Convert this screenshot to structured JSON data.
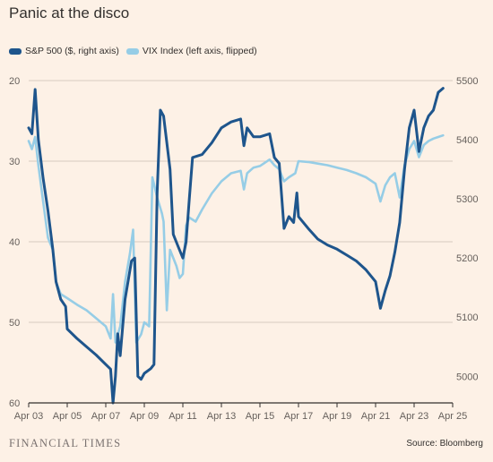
{
  "chart_data": {
    "type": "line",
    "title": "Panic at the disco",
    "x_ticks": [
      "Apr 03",
      "Apr 05",
      "Apr 07",
      "Apr 09",
      "Apr 11",
      "Apr 13",
      "Apr 15",
      "Apr 17",
      "Apr 19",
      "Apr 21",
      "Apr 23",
      "Apr 25"
    ],
    "y_left": {
      "ticks": [
        20,
        30,
        40,
        50,
        60
      ],
      "range": [
        20,
        60
      ],
      "inverted": true
    },
    "y_right": {
      "ticks": [
        5500,
        5400,
        5300,
        5200,
        5100,
        5000
      ],
      "range": [
        4955,
        5500
      ]
    },
    "series": [
      {
        "name": "S&P 500 ($, right axis)",
        "axis": "right",
        "color": "#1e558c",
        "points": [
          [
            "Apr 03",
            5420
          ],
          [
            "Apr 03 04h",
            5410
          ],
          [
            "Apr 03 08h",
            5485
          ],
          [
            "Apr 03 12h",
            5400
          ],
          [
            "Apr 03 18h",
            5335
          ],
          [
            "Apr 04",
            5280
          ],
          [
            "Apr 04 06h",
            5215
          ],
          [
            "Apr 04 10h",
            5160
          ],
          [
            "Apr 04 16h",
            5130
          ],
          [
            "Apr 04 22h",
            5118
          ],
          [
            "Apr 05",
            5080
          ],
          [
            "Apr 05 12h",
            5064
          ],
          [
            "Apr 06",
            5050
          ],
          [
            "Apr 06 12h",
            5036
          ],
          [
            "Apr 07",
            5020
          ],
          [
            "Apr 07 06h",
            5012
          ],
          [
            "Apr 07 09h",
            4955
          ],
          [
            "Apr 07 12h",
            5000
          ],
          [
            "Apr 07 15h",
            5072
          ],
          [
            "Apr 07 18h",
            5035
          ],
          [
            "Apr 08",
            5130
          ],
          [
            "Apr 08 08h",
            5195
          ],
          [
            "Apr 08 12h",
            5200
          ],
          [
            "Apr 08 16h",
            5000
          ],
          [
            "Apr 08 20h",
            4995
          ],
          [
            "Apr 09",
            5005
          ],
          [
            "Apr 09 08h",
            5013
          ],
          [
            "Apr 09 12h",
            5020
          ],
          [
            "Apr 09 16h",
            5310
          ],
          [
            "Apr 09 20h",
            5450
          ],
          [
            "Apr 10",
            5440
          ],
          [
            "Apr 10 08h",
            5350
          ],
          [
            "Apr 10 12h",
            5240
          ],
          [
            "Apr 10 18h",
            5220
          ],
          [
            "Apr 11",
            5200
          ],
          [
            "Apr 11 04h",
            5227
          ],
          [
            "Apr 11 08h",
            5300
          ],
          [
            "Apr 11 12h",
            5370
          ],
          [
            "Apr 12",
            5375
          ],
          [
            "Apr 12 12h",
            5395
          ],
          [
            "Apr 13",
            5420
          ],
          [
            "Apr 13 12h",
            5430
          ],
          [
            "Apr 14",
            5435
          ],
          [
            "Apr 14 04h",
            5390
          ],
          [
            "Apr 14 08h",
            5420
          ],
          [
            "Apr 14 16h",
            5405
          ],
          [
            "Apr 15",
            5405
          ],
          [
            "Apr 15 12h",
            5410
          ],
          [
            "Apr 15 18h",
            5370
          ],
          [
            "Apr 16",
            5360
          ],
          [
            "Apr 16 06h",
            5250
          ],
          [
            "Apr 16 12h",
            5270
          ],
          [
            "Apr 16 18h",
            5260
          ],
          [
            "Apr 16 22h",
            5310
          ],
          [
            "Apr 17",
            5270
          ],
          [
            "Apr 17 12h",
            5250
          ],
          [
            "Apr 18",
            5232
          ],
          [
            "Apr 18 12h",
            5222
          ],
          [
            "Apr 19",
            5215
          ],
          [
            "Apr 19 12h",
            5205
          ],
          [
            "Apr 20",
            5195
          ],
          [
            "Apr 20 12h",
            5180
          ],
          [
            "Apr 21",
            5160
          ],
          [
            "Apr 21 06h",
            5115
          ],
          [
            "Apr 21 12h",
            5145
          ],
          [
            "Apr 21 18h",
            5170
          ],
          [
            "Apr 22",
            5210
          ],
          [
            "Apr 22 06h",
            5260
          ],
          [
            "Apr 22 12h",
            5350
          ],
          [
            "Apr 22 18h",
            5420
          ],
          [
            "Apr 23",
            5450
          ],
          [
            "Apr 23 06h",
            5380
          ],
          [
            "Apr 23 12h",
            5420
          ],
          [
            "Apr 23 18h",
            5440
          ],
          [
            "Apr 24",
            5450
          ],
          [
            "Apr 24 06h",
            5480
          ],
          [
            "Apr 24 12h",
            5487
          ]
        ]
      },
      {
        "name": "VIX Index (left axis, flipped)",
        "axis": "left",
        "color": "#96cde6",
        "points": [
          [
            "Apr 03",
            27.5
          ],
          [
            "Apr 03 04h",
            28.5
          ],
          [
            "Apr 03 08h",
            27.0
          ],
          [
            "Apr 03 12h",
            30.5
          ],
          [
            "Apr 03 18h",
            35.0
          ],
          [
            "Apr 04",
            39.5
          ],
          [
            "Apr 04 06h",
            41.0
          ],
          [
            "Apr 04 10h",
            45.0
          ],
          [
            "Apr 04 16h",
            46.5
          ],
          [
            "Apr 05",
            47.0
          ],
          [
            "Apr 05 12h",
            47.8
          ],
          [
            "Apr 06",
            48.5
          ],
          [
            "Apr 06 12h",
            49.5
          ],
          [
            "Apr 07",
            50.5
          ],
          [
            "Apr 07 06h",
            52.0
          ],
          [
            "Apr 07 09h",
            46.5
          ],
          [
            "Apr 07 12h",
            52.5
          ],
          [
            "Apr 07 18h",
            50.5
          ],
          [
            "Apr 08",
            45.0
          ],
          [
            "Apr 08 06h",
            41.5
          ],
          [
            "Apr 08 10h",
            38.5
          ],
          [
            "Apr 08 14h",
            52.5
          ],
          [
            "Apr 08 20h",
            51.5
          ],
          [
            "Apr 09",
            50.0
          ],
          [
            "Apr 09 06h",
            50.5
          ],
          [
            "Apr 09 10h",
            32.0
          ],
          [
            "Apr 09 16h",
            34.5
          ],
          [
            "Apr 09 22h",
            36.5
          ],
          [
            "Apr 10",
            37.5
          ],
          [
            "Apr 10 04h",
            48.5
          ],
          [
            "Apr 10 08h",
            41.0
          ],
          [
            "Apr 10 16h",
            43.0
          ],
          [
            "Apr 10 20h",
            44.5
          ],
          [
            "Apr 11",
            44.0
          ],
          [
            "Apr 11 04h",
            38.0
          ],
          [
            "Apr 11 08h",
            37.0
          ],
          [
            "Apr 11 16h",
            37.5
          ],
          [
            "Apr 12",
            36.0
          ],
          [
            "Apr 12 12h",
            34.0
          ],
          [
            "Apr 13",
            32.5
          ],
          [
            "Apr 13 12h",
            31.5
          ],
          [
            "Apr 14",
            31.2
          ],
          [
            "Apr 14 04h",
            33.5
          ],
          [
            "Apr 14 08h",
            31.5
          ],
          [
            "Apr 14 16h",
            30.8
          ],
          [
            "Apr 15",
            30.6
          ],
          [
            "Apr 15 12h",
            29.8
          ],
          [
            "Apr 15 18h",
            30.5
          ],
          [
            "Apr 16",
            31.0
          ],
          [
            "Apr 16 06h",
            32.5
          ],
          [
            "Apr 16 12h",
            32.0
          ],
          [
            "Apr 16 20h",
            31.5
          ],
          [
            "Apr 17",
            30.0
          ],
          [
            "Apr 17 12h",
            30.1
          ],
          [
            "Apr 18",
            30.3
          ],
          [
            "Apr 18 12h",
            30.5
          ],
          [
            "Apr 19",
            30.8
          ],
          [
            "Apr 19 12h",
            31.1
          ],
          [
            "Apr 20",
            31.5
          ],
          [
            "Apr 20 12h",
            32.0
          ],
          [
            "Apr 21",
            32.8
          ],
          [
            "Apr 21 06h",
            35.0
          ],
          [
            "Apr 21 12h",
            33.0
          ],
          [
            "Apr 21 18h",
            32.0
          ],
          [
            "Apr 22",
            31.5
          ],
          [
            "Apr 22 06h",
            34.5
          ],
          [
            "Apr 22 12h",
            30.5
          ],
          [
            "Apr 22 18h",
            28.5
          ],
          [
            "Apr 23",
            27.5
          ],
          [
            "Apr 23 06h",
            29.5
          ],
          [
            "Apr 23 12h",
            28.0
          ],
          [
            "Apr 23 18h",
            27.5
          ],
          [
            "Apr 24",
            27.2
          ],
          [
            "Apr 24 06h",
            27.0
          ],
          [
            "Apr 24 12h",
            26.8
          ]
        ]
      }
    ],
    "grid": true,
    "legend_position": "top-left"
  },
  "footer": {
    "brand": "FINANCIAL TIMES",
    "source": "Source: Bloomberg"
  }
}
